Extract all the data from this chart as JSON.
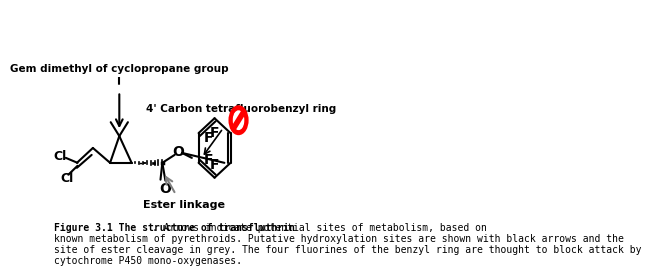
{
  "title_bold": "Figure 3.1 The structure of transfluthrin",
  "title_normal": ". Arrows indicate potential sites of metabolism, based on\nknown metabolism of pyrethroids. Putative hydroxylation sites are shown with black arrows and the\nsite of ester cleavage in grey. The four fluorines of the benzyl ring are thought to block attack by\ncytochrome P450 mono-oxygenases.",
  "label_gem": "Gem dimethyl of cyclopropane group",
  "label_carbon": "4' Carbon tetrafluorobenzyl ring",
  "label_ester": "Ester linkage",
  "bg_color": "#ffffff",
  "text_color": "#000000",
  "fig_width": 5.29,
  "fig_height": 2.58
}
